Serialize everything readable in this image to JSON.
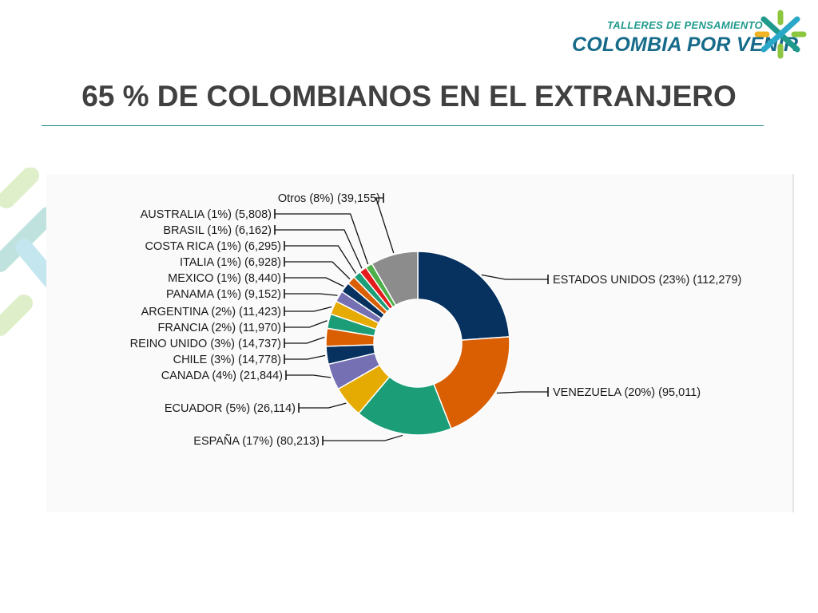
{
  "brand": {
    "sub": "TALLERES DE PENSAMIENTO",
    "main": "COLOMBIA POR VENIR",
    "colors": [
      "#1f9a8c",
      "#8cc63f",
      "#2aa8c9",
      "#f0b323"
    ]
  },
  "slide": {
    "title": "65 % DE COLOMBIANOS EN EL EXTRANJERO"
  },
  "chart_data": {
    "type": "pie",
    "style": "donut",
    "legend": "none",
    "slices": [
      {
        "label": "ESTADOS UNIDOS",
        "pct": "23%",
        "value": 112279,
        "value_text": "112,279",
        "color": "#07325f",
        "side": "right"
      },
      {
        "label": "VENEZUELA",
        "pct": "20%",
        "value": 95011,
        "value_text": "95,011",
        "color": "#d95f02",
        "side": "right"
      },
      {
        "label": "ESPAÑA",
        "pct": "17%",
        "value": 80213,
        "value_text": "80,213",
        "color": "#1b9e77",
        "side": "left"
      },
      {
        "label": "ECUADOR",
        "pct": "5%",
        "value": 26114,
        "value_text": "26,114",
        "color": "#e6ab02",
        "side": "left"
      },
      {
        "label": "CANADA",
        "pct": "4%",
        "value": 21844,
        "value_text": "21,844",
        "color": "#7570b3",
        "side": "left"
      },
      {
        "label": "CHILE",
        "pct": "3%",
        "value": 14778,
        "value_text": "14,778",
        "color": "#07325f",
        "side": "left"
      },
      {
        "label": "REINO UNIDO",
        "pct": "3%",
        "value": 14737,
        "value_text": "14,737",
        "color": "#d95f02",
        "side": "left"
      },
      {
        "label": "FRANCIA",
        "pct": "2%",
        "value": 11970,
        "value_text": "11,970",
        "color": "#1b9e77",
        "side": "left"
      },
      {
        "label": "ARGENTINA",
        "pct": "2%",
        "value": 11423,
        "value_text": "11,423",
        "color": "#e6ab02",
        "side": "left"
      },
      {
        "label": "PANAMA",
        "pct": "1%",
        "value": 9152,
        "value_text": "9,152",
        "color": "#7570b3",
        "side": "left"
      },
      {
        "label": "MEXICO",
        "pct": "1%",
        "value": 8440,
        "value_text": "8,440",
        "color": "#07325f",
        "side": "left"
      },
      {
        "label": "ITALIA",
        "pct": "1%",
        "value": 6928,
        "value_text": "6,928",
        "color": "#d95f02",
        "side": "left"
      },
      {
        "label": "COSTA RICA",
        "pct": "1%",
        "value": 6295,
        "value_text": "6,295",
        "color": "#1b9e77",
        "side": "left"
      },
      {
        "label": "BRASIL",
        "pct": "1%",
        "value": 6162,
        "value_text": "6,162",
        "color": "#e41a1c",
        "side": "left"
      },
      {
        "label": "AUSTRALIA",
        "pct": "1%",
        "value": 5808,
        "value_text": "5,808",
        "color": "#4daf4a",
        "side": "left"
      },
      {
        "label": "Otros",
        "pct": "8%",
        "value": 39155,
        "value_text": "39,155",
        "color": "#8c8c8c",
        "side": "left"
      }
    ]
  }
}
